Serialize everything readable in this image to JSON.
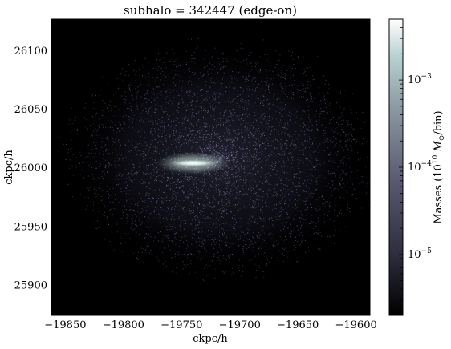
{
  "chart_data": {
    "type": "heatmap",
    "title": "subhalo = 342447 (edge-on)",
    "xlabel": "ckpc/h",
    "ylabel": "ckpc/h",
    "xlim": [
      -19862,
      -19588
    ],
    "ylim": [
      25874,
      26127
    ],
    "x_ticks": [
      -19850,
      -19800,
      -19750,
      -19700,
      -19650,
      -19600
    ],
    "x_tick_labels": [
      "−19850",
      "−19800",
      "−19750",
      "−19700",
      "−19650",
      "−19600"
    ],
    "y_ticks": [
      25900,
      25950,
      26000,
      26050,
      26100
    ],
    "y_tick_labels": [
      "25900",
      "25950",
      "26000",
      "26050",
      "26100"
    ],
    "background_color": "#000000",
    "colormap": "bone",
    "halo": {
      "center": [
        -19718,
        26008
      ],
      "radius_x": 125,
      "radius_y": 95
    },
    "disk": {
      "center": [
        -19740,
        26004
      ],
      "half_width": 20,
      "half_height": 3
    },
    "colorbar": {
      "label": "Masses ($10^{10} M_⊙$/bin)",
      "label_prefix": "Masses (10",
      "label_exp": "10",
      "label_mid": "M",
      "label_sub": "⊙",
      "label_suffix": "/bin)",
      "scale": "log",
      "vmin": 2e-06,
      "vmax": 0.005,
      "major_ticks": [
        1e-05,
        0.0001,
        0.001
      ],
      "tick_base": [
        "10",
        "10",
        "10"
      ],
      "tick_exp": [
        "−5",
        "−4",
        "−3"
      ],
      "colors": [
        "#000000",
        "#2c2c3d",
        "#595870",
        "#8a9aa3",
        "#b8cfcf",
        "#ffffff"
      ]
    }
  }
}
